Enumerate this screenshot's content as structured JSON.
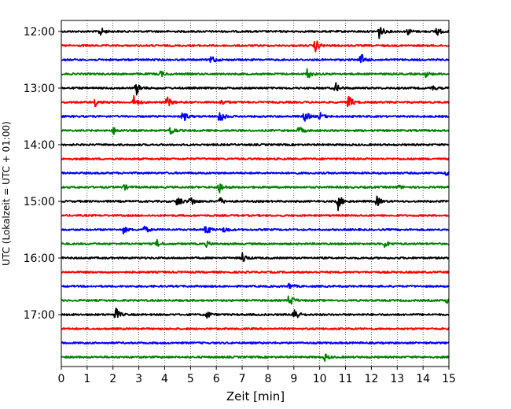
{
  "chart_data": {
    "type": "line",
    "title": "",
    "xlabel": "Zeit  [min]",
    "ylabel": "UTC (Lokalzeit = UTC + 01:00)",
    "xlim": [
      0,
      15
    ],
    "x_ticks": [
      "0",
      "1",
      "2",
      "3",
      "4",
      "5",
      "6",
      "7",
      "8",
      "9",
      "10",
      "11",
      "12",
      "13",
      "14",
      "15"
    ],
    "y_tick_labels": [
      "12:00",
      "13:00",
      "14:00",
      "15:00",
      "16:00",
      "17:00"
    ],
    "grid": "vertical dotted",
    "line_colors": [
      "#000000",
      "#ff0000",
      "#0000ff",
      "#008000"
    ],
    "traces": [
      {
        "start": "12:00",
        "color": "#000000",
        "events": [
          {
            "t": 1.5,
            "a": 0.7
          },
          {
            "t": 12.3,
            "a": 1.0
          },
          {
            "t": 13.4,
            "a": 0.5
          },
          {
            "t": 14.5,
            "a": 0.8
          }
        ]
      },
      {
        "start": "12:15",
        "color": "#ff0000",
        "events": [
          {
            "t": 9.8,
            "a": 1.2
          }
        ]
      },
      {
        "start": "12:30",
        "color": "#0000ff",
        "events": [
          {
            "t": 5.8,
            "a": 0.8
          },
          {
            "t": 11.6,
            "a": 1.0
          }
        ]
      },
      {
        "start": "12:45",
        "color": "#008000",
        "events": [
          {
            "t": 3.8,
            "a": 0.6
          },
          {
            "t": 9.5,
            "a": 0.9
          },
          {
            "t": 14.1,
            "a": 0.4
          }
        ]
      },
      {
        "start": "13:00",
        "color": "#000000",
        "events": [
          {
            "t": 2.9,
            "a": 1.0
          },
          {
            "t": 10.6,
            "a": 0.8
          },
          {
            "t": 14.3,
            "a": 0.5
          }
        ]
      },
      {
        "start": "13:15",
        "color": "#ff0000",
        "events": [
          {
            "t": 1.3,
            "a": 0.6
          },
          {
            "t": 2.8,
            "a": 0.9
          },
          {
            "t": 4.1,
            "a": 0.8
          },
          {
            "t": 6.2,
            "a": 0.5
          },
          {
            "t": 11.1,
            "a": 1.3
          }
        ]
      },
      {
        "start": "13:30",
        "color": "#0000ff",
        "events": [
          {
            "t": 4.7,
            "a": 0.9
          },
          {
            "t": 6.1,
            "a": 1.4
          },
          {
            "t": 9.4,
            "a": 1.0
          },
          {
            "t": 10.0,
            "a": 0.6
          }
        ]
      },
      {
        "start": "13:45",
        "color": "#008000",
        "events": [
          {
            "t": 2.0,
            "a": 0.6
          },
          {
            "t": 4.2,
            "a": 0.9
          },
          {
            "t": 9.2,
            "a": 0.6
          }
        ]
      },
      {
        "start": "14:00",
        "color": "#000000",
        "events": []
      },
      {
        "start": "14:15",
        "color": "#ff0000",
        "events": []
      },
      {
        "start": "14:30",
        "color": "#0000ff",
        "events": [
          {
            "t": 14.9,
            "a": 0.5
          }
        ]
      },
      {
        "start": "14:45",
        "color": "#008000",
        "events": [
          {
            "t": 2.4,
            "a": 0.5
          },
          {
            "t": 6.1,
            "a": 0.9
          },
          {
            "t": 13.0,
            "a": 0.4
          }
        ]
      },
      {
        "start": "15:00",
        "color": "#000000",
        "events": [
          {
            "t": 4.5,
            "a": 0.9
          },
          {
            "t": 5.0,
            "a": 0.8
          },
          {
            "t": 6.1,
            "a": 0.7
          },
          {
            "t": 10.7,
            "a": 1.3
          },
          {
            "t": 12.2,
            "a": 0.8
          }
        ]
      },
      {
        "start": "15:15",
        "color": "#ff0000",
        "events": []
      },
      {
        "start": "15:30",
        "color": "#0000ff",
        "events": [
          {
            "t": 2.4,
            "a": 0.5
          },
          {
            "t": 3.2,
            "a": 0.6
          },
          {
            "t": 5.6,
            "a": 0.9
          },
          {
            "t": 6.3,
            "a": 0.5
          }
        ]
      },
      {
        "start": "15:45",
        "color": "#008000",
        "events": [
          {
            "t": 3.7,
            "a": 0.5
          },
          {
            "t": 5.6,
            "a": 0.4
          },
          {
            "t": 12.5,
            "a": 0.6
          }
        ]
      },
      {
        "start": "16:00",
        "color": "#000000",
        "events": [
          {
            "t": 7.0,
            "a": 0.8
          }
        ]
      },
      {
        "start": "16:15",
        "color": "#ff0000",
        "events": []
      },
      {
        "start": "16:30",
        "color": "#0000ff",
        "events": [
          {
            "t": 8.8,
            "a": 0.5
          }
        ]
      },
      {
        "start": "16:45",
        "color": "#008000",
        "events": [
          {
            "t": 8.8,
            "a": 1.3
          },
          {
            "t": 14.9,
            "a": 0.5
          }
        ]
      },
      {
        "start": "17:00",
        "color": "#000000",
        "events": [
          {
            "t": 2.1,
            "a": 1.0
          },
          {
            "t": 5.6,
            "a": 0.7
          },
          {
            "t": 9.0,
            "a": 1.3
          }
        ]
      },
      {
        "start": "17:15",
        "color": "#ff0000",
        "events": []
      },
      {
        "start": "17:30",
        "color": "#0000ff",
        "events": []
      },
      {
        "start": "17:45",
        "color": "#008000",
        "events": [
          {
            "t": 10.2,
            "a": 0.5
          }
        ]
      }
    ]
  }
}
